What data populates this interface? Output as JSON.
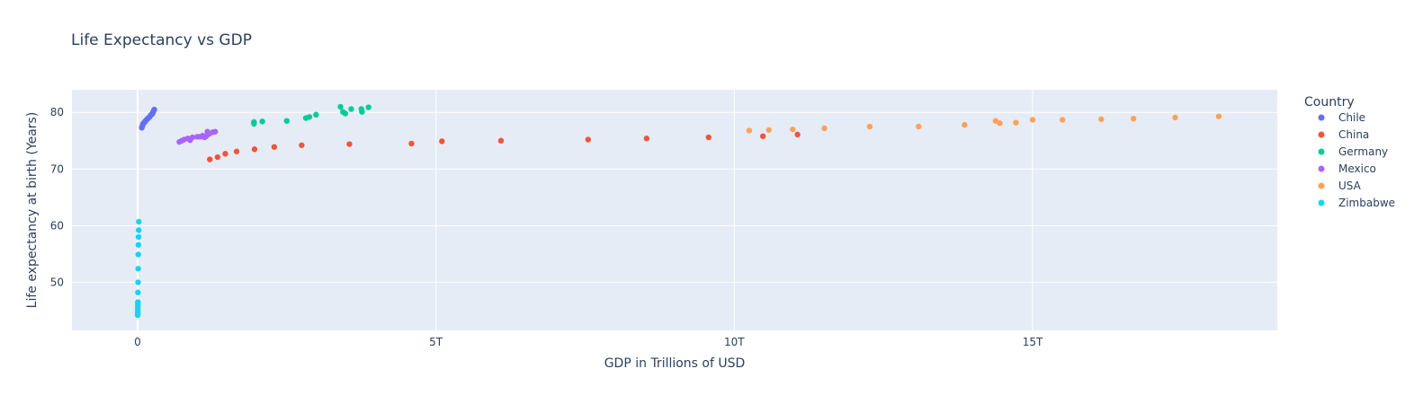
{
  "chart_data": {
    "type": "scatter",
    "title": "Life Expectancy vs GDP",
    "xlabel": "GDP in Trillions of USD",
    "ylabel": "Life expectancy at birth (Years)",
    "xlim": [
      -1.1,
      19.1
    ],
    "ylim": [
      41.5,
      84
    ],
    "x_ticks": [
      {
        "value": 0,
        "label": "0"
      },
      {
        "value": 5,
        "label": "5T"
      },
      {
        "value": 10,
        "label": "10T"
      },
      {
        "value": 15,
        "label": "15T"
      }
    ],
    "y_ticks": [
      {
        "value": 50,
        "label": "50"
      },
      {
        "value": 60,
        "label": "60"
      },
      {
        "value": 70,
        "label": "70"
      },
      {
        "value": 80,
        "label": "80"
      }
    ],
    "grid": true,
    "background": "#E5ECF6",
    "legend": {
      "title": "Country",
      "position": "right"
    },
    "series": [
      {
        "name": "Chile",
        "color": "#636EFA",
        "points": [
          [
            0.07,
            77.3
          ],
          [
            0.08,
            77.6
          ],
          [
            0.09,
            77.9
          ],
          [
            0.1,
            78.1
          ],
          [
            0.12,
            78.3
          ],
          [
            0.14,
            78.6
          ],
          [
            0.16,
            78.8
          ],
          [
            0.18,
            79.0
          ],
          [
            0.2,
            79.2
          ],
          [
            0.22,
            79.5
          ],
          [
            0.23,
            79.6
          ],
          [
            0.25,
            79.8
          ],
          [
            0.26,
            80.1
          ],
          [
            0.27,
            80.3
          ],
          [
            0.28,
            80.5
          ]
        ]
      },
      {
        "name": "China",
        "color": "#EF553B",
        "points": [
          [
            1.21,
            71.7
          ],
          [
            1.34,
            72.1
          ],
          [
            1.47,
            72.7
          ],
          [
            1.66,
            73.1
          ],
          [
            1.96,
            73.5
          ],
          [
            2.29,
            73.9
          ],
          [
            2.75,
            74.2
          ],
          [
            3.55,
            74.4
          ],
          [
            4.59,
            74.5
          ],
          [
            5.1,
            74.9
          ],
          [
            6.09,
            75.0
          ],
          [
            7.55,
            75.2
          ],
          [
            8.53,
            75.4
          ],
          [
            9.57,
            75.6
          ],
          [
            10.48,
            75.8
          ],
          [
            11.06,
            76.1
          ]
        ]
      },
      {
        "name": "Germany",
        "color": "#00CC96",
        "points": [
          [
            1.95,
            78.0
          ],
          [
            1.95,
            78.3
          ],
          [
            2.09,
            78.4
          ],
          [
            2.5,
            78.5
          ],
          [
            2.82,
            79.0
          ],
          [
            2.88,
            79.2
          ],
          [
            2.99,
            79.6
          ],
          [
            3.4,
            81.0
          ],
          [
            3.44,
            80.1
          ],
          [
            3.48,
            79.8
          ],
          [
            3.58,
            80.6
          ],
          [
            3.76,
            80.1
          ],
          [
            3.75,
            80.6
          ],
          [
            3.87,
            80.9
          ]
        ]
      },
      {
        "name": "Mexico",
        "color": "#AB63FA",
        "points": [
          [
            0.7,
            74.8
          ],
          [
            0.74,
            75.0
          ],
          [
            0.78,
            75.2
          ],
          [
            0.84,
            75.4
          ],
          [
            0.88,
            75.1
          ],
          [
            0.92,
            75.6
          ],
          [
            1.0,
            75.7
          ],
          [
            1.05,
            75.7
          ],
          [
            1.09,
            75.9
          ],
          [
            1.12,
            75.6
          ],
          [
            1.15,
            75.8
          ],
          [
            1.17,
            76.6
          ],
          [
            1.2,
            76.2
          ],
          [
            1.26,
            76.5
          ],
          [
            1.3,
            76.6
          ]
        ]
      },
      {
        "name": "USA",
        "color": "#FFA15A",
        "points": [
          [
            10.25,
            76.8
          ],
          [
            10.58,
            76.9
          ],
          [
            10.98,
            77.0
          ],
          [
            11.51,
            77.2
          ],
          [
            12.27,
            77.5
          ],
          [
            13.09,
            77.5
          ],
          [
            13.86,
            77.8
          ],
          [
            14.45,
            78.1
          ],
          [
            14.38,
            78.5
          ],
          [
            14.72,
            78.2
          ],
          [
            15.0,
            78.7
          ],
          [
            15.5,
            78.7
          ],
          [
            16.15,
            78.8
          ],
          [
            16.69,
            78.9
          ],
          [
            17.39,
            79.1
          ],
          [
            18.12,
            79.3
          ]
        ]
      },
      {
        "name": "Zimbabwe",
        "color": "#19D3F3",
        "points": [
          [
            0.002,
            44.2
          ],
          [
            0.002,
            44.6
          ],
          [
            0.003,
            45.0
          ],
          [
            0.003,
            45.4
          ],
          [
            0.004,
            45.8
          ],
          [
            0.004,
            46.2
          ],
          [
            0.005,
            46.5
          ],
          [
            0.006,
            48.2
          ],
          [
            0.008,
            50.0
          ],
          [
            0.01,
            52.4
          ],
          [
            0.012,
            54.9
          ],
          [
            0.014,
            56.6
          ],
          [
            0.016,
            58.0
          ],
          [
            0.018,
            59.2
          ],
          [
            0.02,
            60.7
          ]
        ]
      }
    ]
  }
}
